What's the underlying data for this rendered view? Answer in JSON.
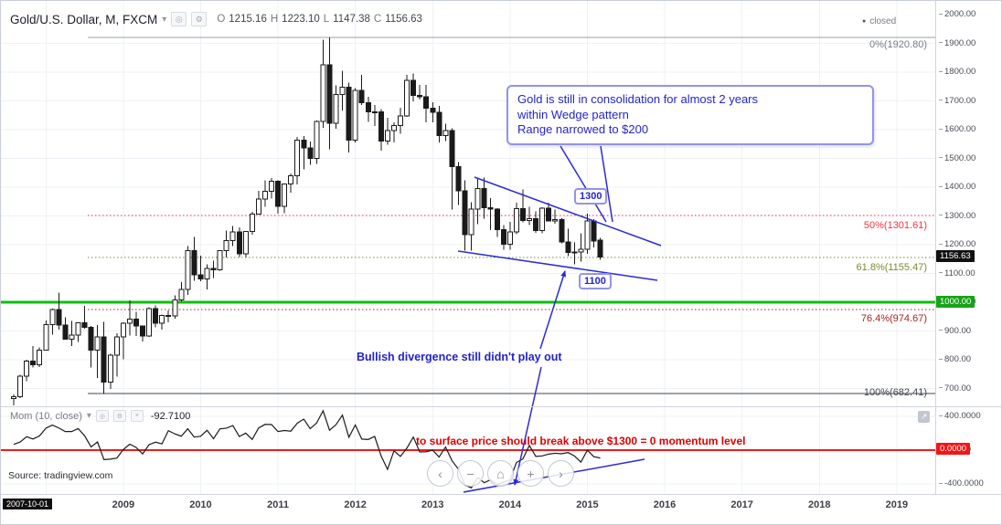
{
  "header": {
    "symbol": "Gold/U.S. Dollar, M, FXCM",
    "ohlc": {
      "o_label": "O",
      "o": "1215.16",
      "h_label": "H",
      "h": "1223.10",
      "l_label": "L",
      "l": "1147.38",
      "c_label": "C",
      "c": "1156.63"
    },
    "market_status": "closed"
  },
  "icons": {
    "caret": "▾",
    "eye": "◎",
    "gear": "⚙",
    "close": "×",
    "expand": "↗",
    "status_dot": "●"
  },
  "fib": {
    "p0": "0%(1920.80)",
    "p50": "50%(1301.61)",
    "p618": "61.8%(1155.47)",
    "p764": "76.4%(974.67)",
    "p100": "100%(682.41)"
  },
  "annotations": {
    "callout": [
      "Gold is still in consolidation for almost 2 years",
      "within Wedge pattern",
      "Range narrowed to $200"
    ],
    "label_1300": "1300",
    "label_1100": "1100",
    "bullish_divergence": "Bullish divergence still didn't play out",
    "momentum_note": "to surface price should break above $1300 = 0 momentum level"
  },
  "price_axis": {
    "labels": [
      "2000.00",
      "1900.00",
      "1800.00",
      "1700.00",
      "1600.00",
      "1500.00",
      "1400.00",
      "1300.00",
      "1200.00",
      "1100.00",
      "1000.00",
      "900.00",
      "800.00",
      "700.00"
    ],
    "current_price": "1156.63",
    "level_1000": "1000.00"
  },
  "momentum": {
    "legend": "Mom (10, close)",
    "value": "-92.7100",
    "axis": [
      "400.0000",
      "0.0000",
      "-400.0000"
    ],
    "zero_label": "0.0000"
  },
  "time_axis": {
    "start_badge": "2007-10-01",
    "years": [
      "2009",
      "2010",
      "2011",
      "2012",
      "2013",
      "2014",
      "2015",
      "2016",
      "2017",
      "2018",
      "2019"
    ]
  },
  "nav": {
    "scroll_left": "‹",
    "zoom_out": "−",
    "reset": "⌂",
    "zoom_in": "+",
    "scroll_right": "›"
  },
  "source": {
    "text": "Source: tradingview.com"
  },
  "colors": {
    "drawing_blue": "#2b2bd4",
    "fib_50_red": "#f23645",
    "fib_618_olive": "#7a8c2e",
    "fib_764_maroon": "#a52222",
    "hline_green": "#0bc10b",
    "momentum_zero_red": "#ef1c1c",
    "candle_black": "#1a1a1a"
  },
  "chart_data": {
    "type": "candlestick",
    "title": "Gold/U.S. Dollar, M, FXCM",
    "interval": "1M",
    "start_month": "2007-08",
    "end_month": "2015-03",
    "ylim": [
      640,
      2010
    ],
    "price_grid_step": 100,
    "ohlc": [
      [
        665,
        680,
        642,
        672
      ],
      [
        672,
        747,
        667,
        743
      ],
      [
        743,
        800,
        725,
        795
      ],
      [
        795,
        848,
        773,
        783
      ],
      [
        783,
        843,
        775,
        834
      ],
      [
        834,
        936,
        833,
        923
      ],
      [
        923,
        978,
        888,
        974
      ],
      [
        974,
        1033,
        904,
        921
      ],
      [
        921,
        948,
        871,
        871
      ],
      [
        871,
        935,
        848,
        886
      ],
      [
        886,
        930,
        862,
        928
      ],
      [
        928,
        988,
        908,
        913
      ],
      [
        913,
        918,
        773,
        833
      ],
      [
        833,
        920,
        736,
        880
      ],
      [
        880,
        931,
        681,
        722
      ],
      [
        722,
        820,
        699,
        816
      ],
      [
        816,
        892,
        741,
        880
      ],
      [
        880,
        930,
        801,
        927
      ],
      [
        927,
        1006,
        884,
        941
      ],
      [
        941,
        966,
        883,
        917
      ],
      [
        917,
        918,
        864,
        883
      ],
      [
        883,
        982,
        880,
        978
      ],
      [
        978,
        989,
        913,
        927
      ],
      [
        927,
        957,
        905,
        954
      ],
      [
        954,
        971,
        930,
        953
      ],
      [
        953,
        1024,
        943,
        1008
      ],
      [
        1008,
        1070,
        1003,
        1045
      ],
      [
        1045,
        1195,
        1025,
        1180
      ],
      [
        1180,
        1227,
        1075,
        1096
      ],
      [
        1096,
        1162,
        1073,
        1081
      ],
      [
        1081,
        1131,
        1044,
        1118
      ],
      [
        1118,
        1145,
        1084,
        1113
      ],
      [
        1113,
        1181,
        1110,
        1179
      ],
      [
        1179,
        1249,
        1156,
        1214
      ],
      [
        1214,
        1265,
        1196,
        1244
      ],
      [
        1244,
        1261,
        1157,
        1169
      ],
      [
        1169,
        1246,
        1157,
        1246
      ],
      [
        1246,
        1314,
        1235,
        1307
      ],
      [
        1307,
        1388,
        1305,
        1359
      ],
      [
        1359,
        1424,
        1331,
        1386
      ],
      [
        1386,
        1431,
        1361,
        1421
      ],
      [
        1421,
        1424,
        1308,
        1333
      ],
      [
        1333,
        1412,
        1309,
        1411
      ],
      [
        1411,
        1447,
        1381,
        1439
      ],
      [
        1439,
        1575,
        1410,
        1563
      ],
      [
        1563,
        1577,
        1462,
        1536
      ],
      [
        1536,
        1559,
        1478,
        1500
      ],
      [
        1500,
        1632,
        1481,
        1628
      ],
      [
        1628,
        1913,
        1606,
        1825
      ],
      [
        1825,
        1921,
        1532,
        1622
      ],
      [
        1622,
        1754,
        1603,
        1722
      ],
      [
        1722,
        1804,
        1667,
        1747
      ],
      [
        1747,
        1763,
        1521,
        1564
      ],
      [
        1564,
        1744,
        1556,
        1737
      ],
      [
        1737,
        1790,
        1686,
        1694
      ],
      [
        1694,
        1714,
        1627,
        1662
      ],
      [
        1662,
        1685,
        1612,
        1662
      ],
      [
        1662,
        1672,
        1527,
        1560
      ],
      [
        1560,
        1641,
        1547,
        1597
      ],
      [
        1597,
        1625,
        1556,
        1614
      ],
      [
        1614,
        1676,
        1586,
        1648
      ],
      [
        1648,
        1791,
        1644,
        1771
      ],
      [
        1771,
        1796,
        1698,
        1719
      ],
      [
        1719,
        1755,
        1705,
        1715
      ],
      [
        1715,
        1755,
        1625,
        1675
      ],
      [
        1675,
        1695,
        1626,
        1661
      ],
      [
        1661,
        1682,
        1555,
        1580
      ],
      [
        1580,
        1620,
        1560,
        1597
      ],
      [
        1597,
        1604,
        1322,
        1472
      ],
      [
        1472,
        1488,
        1338,
        1388
      ],
      [
        1388,
        1424,
        1180,
        1235
      ],
      [
        1235,
        1348,
        1180,
        1324
      ],
      [
        1324,
        1434,
        1272,
        1395
      ],
      [
        1395,
        1434,
        1291,
        1329
      ],
      [
        1329,
        1362,
        1251,
        1324
      ],
      [
        1324,
        1327,
        1227,
        1252
      ],
      [
        1252,
        1268,
        1182,
        1202
      ],
      [
        1202,
        1279,
        1182,
        1244
      ],
      [
        1244,
        1346,
        1237,
        1326
      ],
      [
        1326,
        1392,
        1277,
        1284
      ],
      [
        1284,
        1331,
        1268,
        1291
      ],
      [
        1291,
        1316,
        1241,
        1250
      ],
      [
        1250,
        1330,
        1240,
        1327
      ],
      [
        1327,
        1346,
        1281,
        1282
      ],
      [
        1282,
        1322,
        1273,
        1287
      ],
      [
        1287,
        1292,
        1204,
        1209
      ],
      [
        1209,
        1256,
        1160,
        1173
      ],
      [
        1173,
        1208,
        1131,
        1175
      ],
      [
        1175,
        1239,
        1141,
        1184
      ],
      [
        1184,
        1308,
        1168,
        1283
      ],
      [
        1283,
        1289,
        1190,
        1213
      ],
      [
        1215.16,
        1223.1,
        1147.38,
        1156.63
      ]
    ],
    "pre_closes": [
      604,
      647,
      636,
      651,
      665,
      663,
      677,
      659,
      651,
      666
    ],
    "fib_levels": {
      "0": 1920.8,
      "50": 1301.61,
      "61.8": 1155.47,
      "76.4": 974.67,
      "100": 682.41
    },
    "horizontal_line": 1000.0,
    "indicator": {
      "name": "Mom",
      "params": "10, close",
      "formula": "close - close[10]",
      "last_value": -92.71,
      "range": [
        -400,
        400
      ],
      "zero_line": 0
    }
  }
}
